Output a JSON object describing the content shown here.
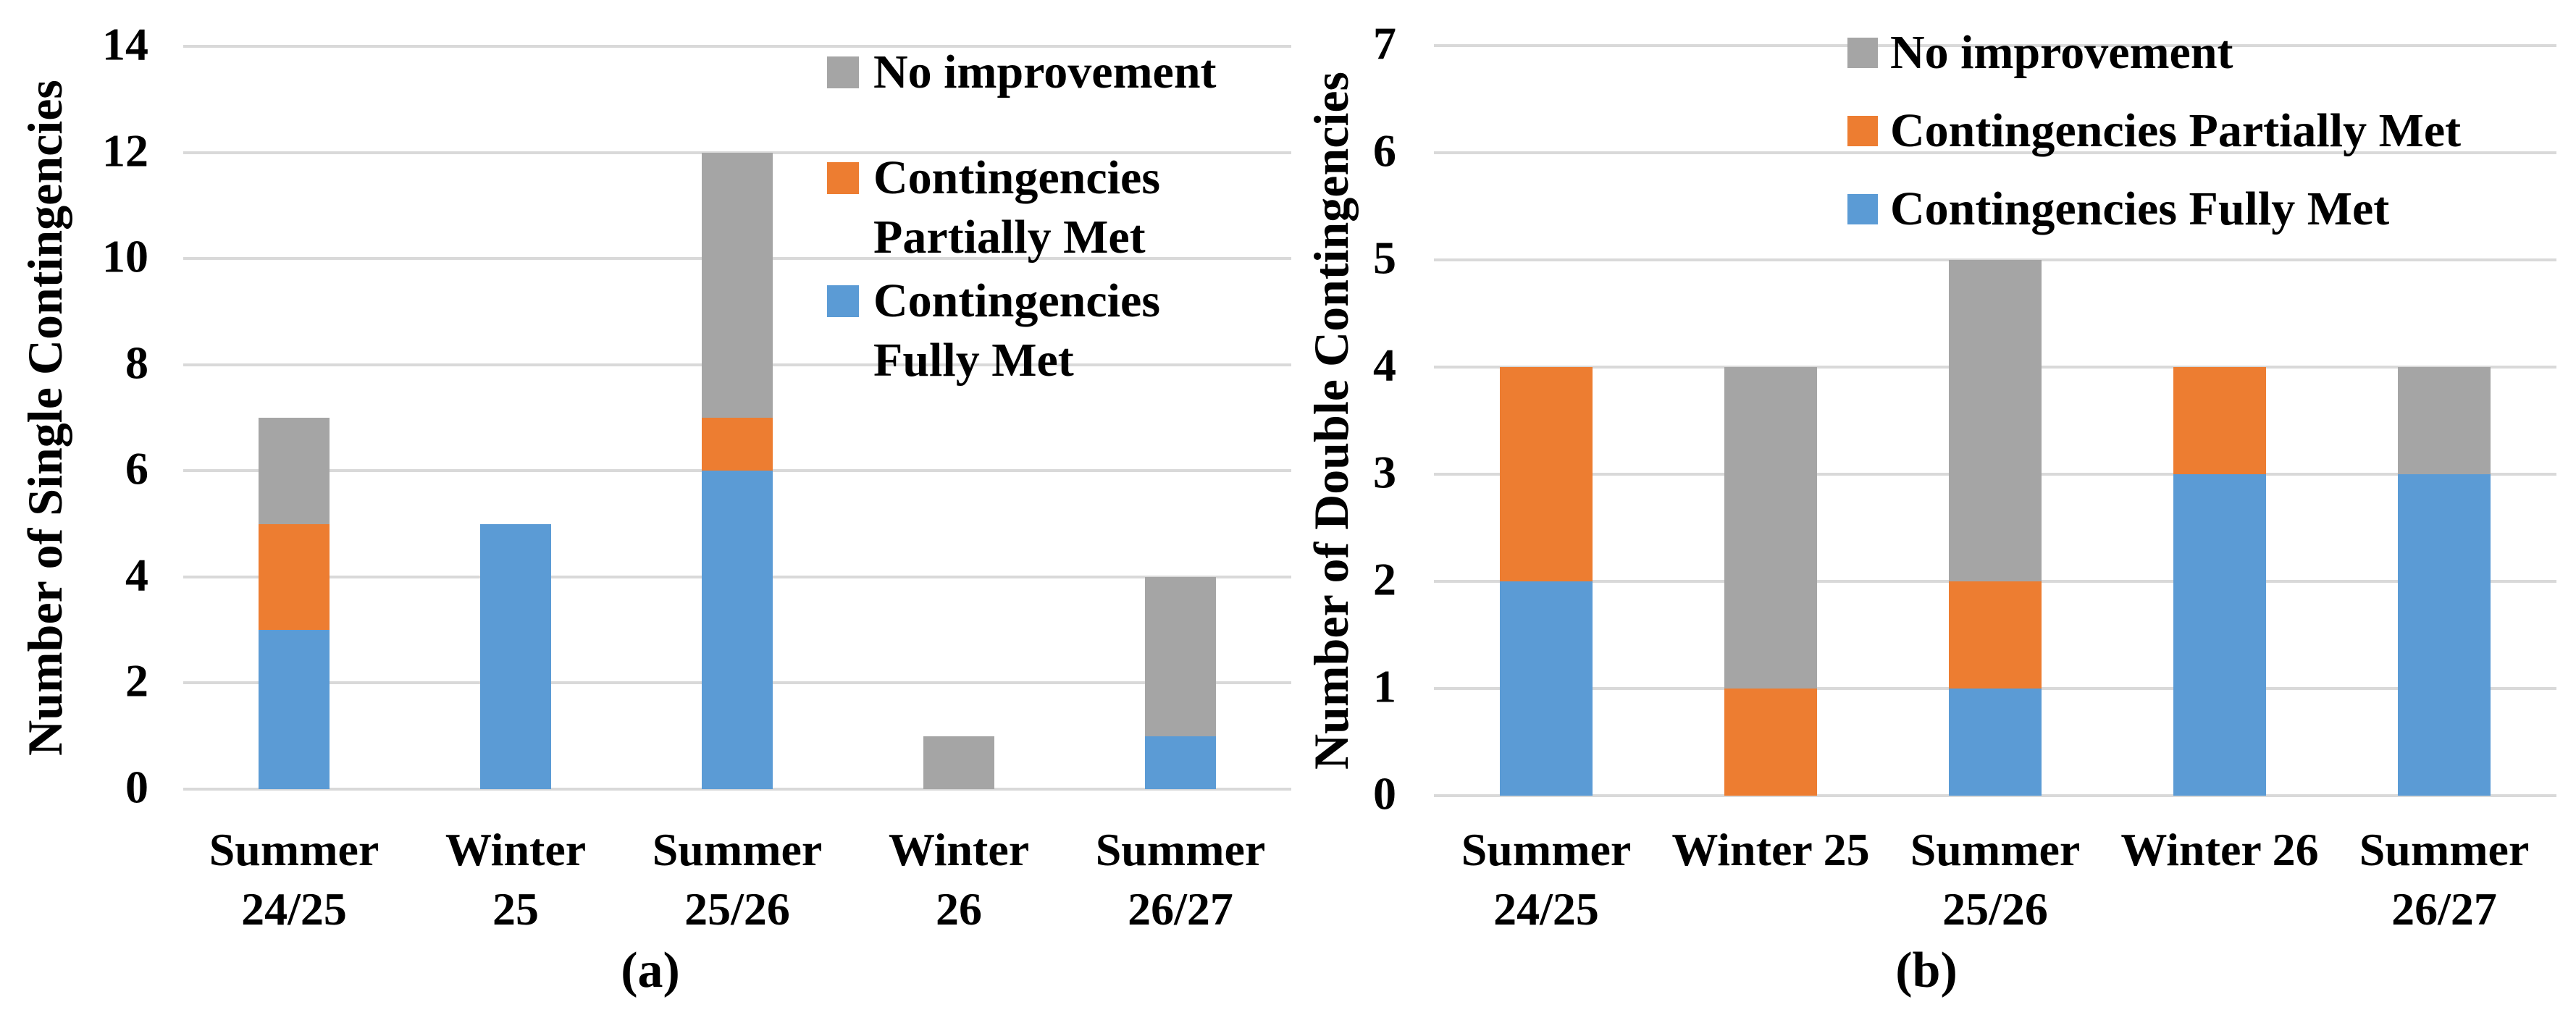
{
  "figure": {
    "background": "#FFFFFF",
    "text_color": "#000000"
  },
  "colors": {
    "blue": "#5B9BD5",
    "orange": "#ED7D31",
    "gray": "#A5A5A5",
    "gridline": "#D9D9D9"
  },
  "chart_data": [
    {
      "id": "a",
      "type": "bar",
      "stacked": true,
      "caption": "(a)",
      "ylabel": "Number of Single Contingencies",
      "xlabel": "",
      "ylim": [
        0,
        14
      ],
      "ytick_step": 2,
      "yticks": [
        0,
        2,
        4,
        6,
        8,
        10,
        12,
        14
      ],
      "grid": true,
      "legend_position": "inside-top-right",
      "categories": [
        "Summer 24/25",
        "Winter 25",
        "Summer 25/26",
        "Winter 26",
        "Summer 26/27"
      ],
      "category_label_lines": [
        [
          "Summer",
          "24/25"
        ],
        [
          "Winter",
          "25"
        ],
        [
          "Summer",
          "25/26"
        ],
        [
          "Winter",
          "26"
        ],
        [
          "Summer",
          "26/27"
        ]
      ],
      "series": [
        {
          "name": "Contingencies Fully Met",
          "color_key": "blue",
          "values": [
            3,
            5,
            6,
            0,
            1
          ]
        },
        {
          "name": "Contingencies Partially Met",
          "color_key": "orange",
          "values": [
            2,
            0,
            1,
            0,
            0
          ]
        },
        {
          "name": "No improvement",
          "color_key": "gray",
          "values": [
            2,
            0,
            5,
            1,
            3
          ]
        }
      ],
      "stack_totals": [
        7,
        5,
        12,
        1,
        4
      ],
      "legend": [
        {
          "color_key": "gray",
          "lines": [
            "No improvement"
          ]
        },
        {
          "color_key": "orange",
          "lines": [
            "Contingencies",
            "Partially Met"
          ]
        },
        {
          "color_key": "blue",
          "lines": [
            "Contingencies",
            "Fully Met"
          ]
        }
      ]
    },
    {
      "id": "b",
      "type": "bar",
      "stacked": true,
      "caption": "(b)",
      "ylabel": "Number of Double Contingencies",
      "xlabel": "",
      "ylim": [
        0,
        7
      ],
      "ytick_step": 1,
      "yticks": [
        0,
        1,
        2,
        3,
        4,
        5,
        6,
        7
      ],
      "grid": true,
      "legend_position": "inside-top-right",
      "categories": [
        "Summer 24/25",
        "Winter 25",
        "Summer 25/26",
        "Winter 26",
        "Summer 26/27"
      ],
      "category_label_lines": [
        [
          "Summer",
          "24/25"
        ],
        [
          "Winter 25"
        ],
        [
          "Summer",
          "25/26"
        ],
        [
          "Winter 26"
        ],
        [
          "Summer",
          "26/27"
        ]
      ],
      "series": [
        {
          "name": "Contingencies Fully Met",
          "color_key": "blue",
          "values": [
            2,
            0,
            1,
            3,
            3
          ]
        },
        {
          "name": "Contingencies Partially Met",
          "color_key": "orange",
          "values": [
            2,
            1,
            1,
            1,
            0
          ]
        },
        {
          "name": "No improvement",
          "color_key": "gray",
          "values": [
            0,
            3,
            3,
            0,
            1
          ]
        }
      ],
      "stack_totals": [
        4,
        4,
        5,
        4,
        4
      ],
      "legend": [
        {
          "color_key": "gray",
          "lines": [
            "No improvement"
          ]
        },
        {
          "color_key": "orange",
          "lines": [
            "Contingencies Partially Met"
          ]
        },
        {
          "color_key": "blue",
          "lines": [
            "Contingencies Fully Met"
          ]
        }
      ]
    }
  ]
}
